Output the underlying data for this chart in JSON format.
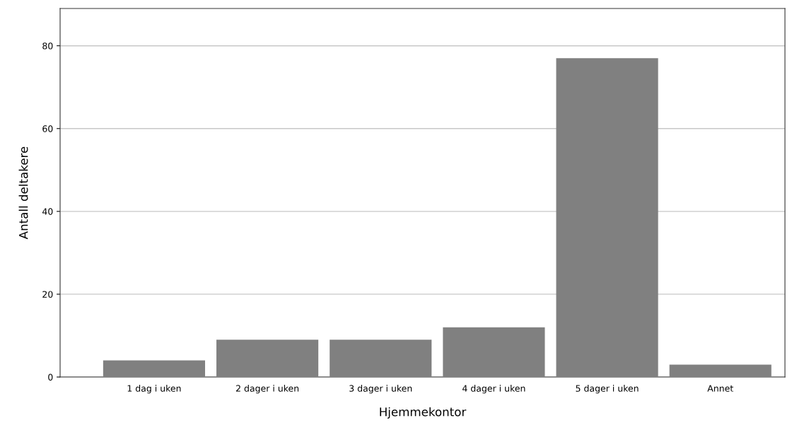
{
  "chart_data": {
    "type": "bar",
    "xlabel": "Hjemmekontor",
    "ylabel": "Antall deltakere",
    "categories": [
      "1 dag i uken",
      "2 dager i uken",
      "3 dager i uken",
      "4 dager i uken",
      "5 dager i uken",
      "Annet"
    ],
    "values": [
      4,
      9,
      9,
      12,
      77,
      3
    ],
    "color": "#808080",
    "ylim": [
      0,
      89
    ],
    "yticks": [
      0,
      20,
      40,
      60,
      80
    ],
    "grid": "y"
  }
}
